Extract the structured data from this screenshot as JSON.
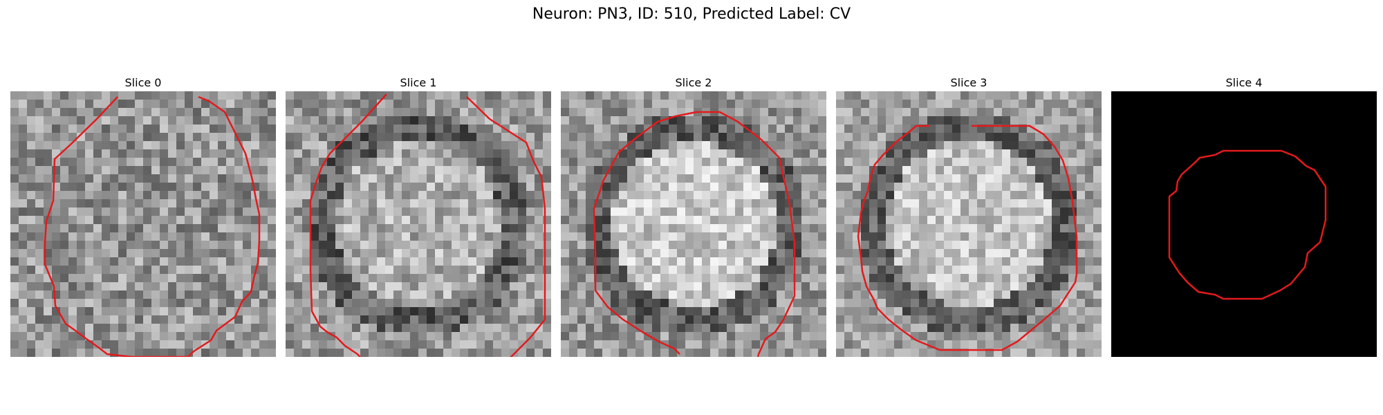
{
  "figure": {
    "title": "Neuron: PN3, ID: 510, Predicted Label: CV"
  },
  "panels": [
    {
      "title": "Slice 0",
      "kind": "grayscale",
      "contour_color": "#e31a1c"
    },
    {
      "title": "Slice 1",
      "kind": "grayscale",
      "contour_color": "#e31a1c"
    },
    {
      "title": "Slice 2",
      "kind": "grayscale",
      "contour_color": "#e31a1c"
    },
    {
      "title": "Slice 3",
      "kind": "grayscale",
      "contour_color": "#e31a1c"
    },
    {
      "title": "Slice 4",
      "kind": "mask",
      "background": "#000000",
      "contour_color": "#e31a1c"
    }
  ]
}
